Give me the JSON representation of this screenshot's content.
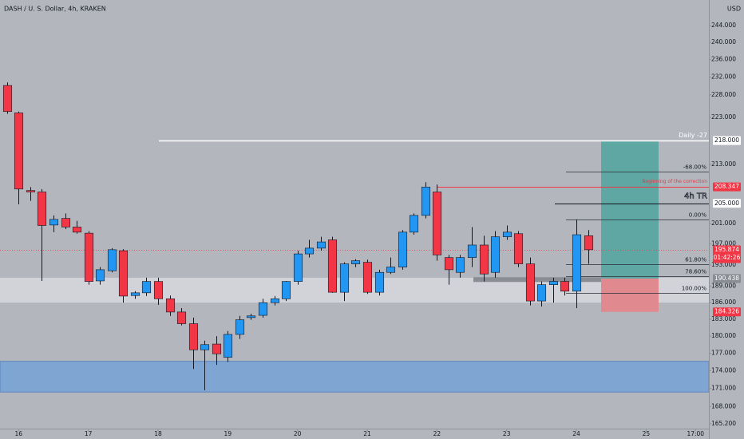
{
  "chart_data": {
    "type": "candlestick",
    "title": "DASH / U. S. Dollar, 4h, KRAKEN",
    "y_axis_unit": "USD",
    "log_scale": true,
    "ylim": [
      164.4,
      250.2
    ],
    "xlim": [
      -0.6,
      60.4
    ],
    "yticks": [
      {
        "value": 244,
        "label": "244.000"
      },
      {
        "value": 240,
        "label": "240.000"
      },
      {
        "value": 236,
        "label": "236.000"
      },
      {
        "value": 232,
        "label": "232.000"
      },
      {
        "value": 228,
        "label": "228.000"
      },
      {
        "value": 223,
        "label": "223.000"
      },
      {
        "value": 213,
        "label": "213.000"
      },
      {
        "value": 201,
        "label": "201.000"
      },
      {
        "value": 197,
        "label": "197.000"
      },
      {
        "value": 193,
        "label": "193.000"
      },
      {
        "value": 189,
        "label": "189.000"
      },
      {
        "value": 186,
        "label": "186.000"
      },
      {
        "value": 183,
        "label": "183.000"
      },
      {
        "value": 180,
        "label": "180.000"
      },
      {
        "value": 177,
        "label": "177.000"
      },
      {
        "value": 174,
        "label": "174.000"
      },
      {
        "value": 171,
        "label": "171.000"
      },
      {
        "value": 168,
        "label": "168.000"
      },
      {
        "value": 165.2,
        "label": "165.200"
      }
    ],
    "xticks": [
      {
        "value": 1,
        "label": "16"
      },
      {
        "value": 7,
        "label": "17"
      },
      {
        "value": 13,
        "label": "18"
      },
      {
        "value": 19,
        "label": "19"
      },
      {
        "value": 25,
        "label": "20"
      },
      {
        "value": 31,
        "label": "21"
      },
      {
        "value": 37,
        "label": "22"
      },
      {
        "value": 43,
        "label": "23"
      },
      {
        "value": 49,
        "label": "24"
      },
      {
        "value": 55,
        "label": "25"
      },
      {
        "value": 59.25,
        "label": "17:00"
      }
    ],
    "up_color": "#2196f3",
    "down_color": "#f23645",
    "open": [
      230.1,
      224.0,
      207.6,
      207.3,
      200.7,
      202.0,
      200.3,
      199.1,
      190.0,
      191.9,
      195.7,
      187.3,
      187.8,
      189.9,
      186.7,
      184.3,
      182.2,
      177.6,
      178.6,
      176.3,
      180.3,
      183.3,
      183.7,
      186.0,
      186.7,
      189.9,
      195.1,
      196.2,
      197.8,
      187.9,
      193.2,
      193.5,
      187.9,
      191.6,
      192.6,
      199.3,
      202.6,
      207.3,
      194.4,
      191.6,
      194.4,
      196.8,
      191.6,
      198.4,
      199.0,
      193.2,
      186.3,
      189.3,
      189.9,
      188.1,
      198.6
    ],
    "high": [
      230.8,
      224.3,
      208.3,
      207.9,
      202.6,
      203.0,
      201.5,
      199.5,
      192.6,
      196.2,
      196.0,
      188.1,
      190.6,
      190.6,
      187.3,
      185.0,
      183.3,
      179.2,
      180.0,
      180.9,
      183.6,
      184.0,
      186.7,
      187.2,
      190.0,
      195.7,
      197.8,
      198.4,
      198.4,
      193.5,
      194.1,
      194.0,
      192.1,
      194.4,
      199.7,
      203.0,
      209.3,
      208.8,
      194.9,
      194.9,
      200.3,
      198.6,
      199.5,
      200.6,
      199.5,
      194.4,
      189.9,
      190.6,
      190.6,
      201.8,
      199.7
    ],
    "low": [
      223.8,
      204.8,
      205.5,
      190.0,
      199.3,
      199.9,
      199.0,
      189.3,
      189.3,
      191.6,
      186.0,
      186.7,
      187.2,
      185.6,
      183.6,
      181.9,
      174.3,
      170.7,
      175.0,
      175.5,
      179.5,
      182.9,
      183.3,
      185.5,
      186.3,
      189.3,
      194.4,
      195.7,
      187.8,
      186.3,
      192.6,
      187.6,
      187.3,
      191.3,
      192.1,
      198.8,
      202.0,
      193.8,
      189.3,
      190.6,
      192.6,
      189.9,
      190.6,
      197.8,
      192.6,
      185.5,
      185.3,
      186.0,
      187.3,
      185.0,
      193.2
    ],
    "close": [
      224.3,
      207.9,
      207.3,
      200.6,
      201.8,
      200.3,
      199.3,
      189.9,
      192.1,
      195.9,
      187.2,
      187.8,
      189.9,
      186.7,
      184.3,
      182.2,
      177.6,
      178.5,
      176.9,
      180.3,
      182.9,
      183.6,
      186.0,
      186.7,
      189.9,
      195.1,
      196.2,
      197.4,
      187.9,
      193.2,
      193.8,
      187.9,
      191.6,
      192.6,
      199.3,
      202.6,
      208.3,
      194.9,
      192.1,
      194.4,
      196.8,
      191.3,
      198.4,
      199.3,
      193.2,
      186.3,
      189.3,
      189.9,
      188.1,
      198.8,
      195.9
    ],
    "current_price": {
      "value": 195.874,
      "label": "195.874",
      "countdown": "01:42:26",
      "color": "#f23645"
    },
    "levels": [
      {
        "name": "Daily -27",
        "value": 218,
        "label": "218.000",
        "color": "#ffffff"
      },
      {
        "name": "Beginning of the correction",
        "value": 208.347,
        "label": "208.347",
        "color": "#f23645"
      },
      {
        "name": "4h TR",
        "value": 205,
        "label": "205.000",
        "color": "#131722"
      }
    ],
    "fib_levels": [
      {
        "name": "-68.00%",
        "value": 211.4
      },
      {
        "name": "0.00%",
        "value": 201.8
      },
      {
        "name": "61.80%",
        "value": 193.2
      },
      {
        "name": "78.60%",
        "value": 190.9
      },
      {
        "name": "100.00%",
        "value": 187.8
      }
    ],
    "zones": [
      {
        "low": 186.0,
        "high": 190.6,
        "color": "#d1d3d8"
      },
      {
        "low": 170.4,
        "high": 175.6,
        "color": "#7fa6d2"
      },
      {
        "low": 189.8,
        "high": 190.7,
        "color": "#8a8d93"
      }
    ],
    "position": {
      "entry": 190.438,
      "entry_label": "190.438",
      "target": 218,
      "stop": 184.326,
      "stop_label": "184.326",
      "profit_color": "#5fa7a3",
      "loss_color": "#e08a8f"
    }
  }
}
